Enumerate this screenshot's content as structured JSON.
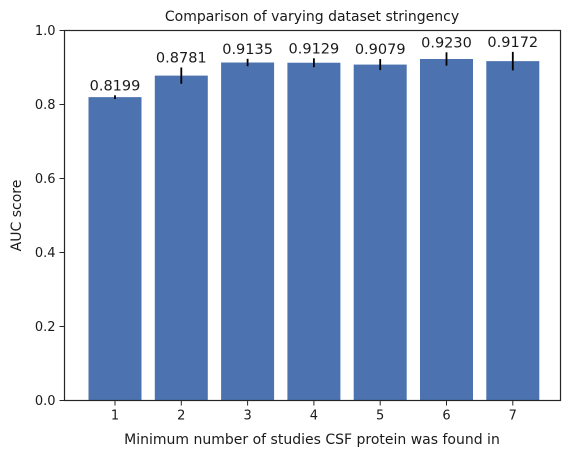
{
  "chart_data": {
    "type": "bar",
    "title": "Comparison of varying dataset stringency",
    "xlabel": "Minimum number of studies CSF protein was found in",
    "ylabel": "AUC score",
    "categories": [
      "1",
      "2",
      "3",
      "4",
      "5",
      "6",
      "7"
    ],
    "values": [
      0.8199,
      0.8781,
      0.9135,
      0.9129,
      0.9079,
      0.923,
      0.9172
    ],
    "data_labels": [
      "0.8199",
      "0.8781",
      "0.9135",
      "0.9129",
      "0.9079",
      "0.9230",
      "0.9172"
    ],
    "error": [
      0.005,
      0.022,
      0.01,
      0.012,
      0.015,
      0.018,
      0.025
    ],
    "ylim": [
      0,
      1
    ],
    "yticks": [
      0.0,
      0.2,
      0.4,
      0.6,
      0.8,
      1.0
    ],
    "ytick_labels": [
      "0.0",
      "0.2",
      "0.4",
      "0.6",
      "0.8",
      "1.0"
    ],
    "grid": false,
    "colors": {
      "bar": "#4c72b0",
      "error": "#000000",
      "axis": "#262626"
    }
  }
}
